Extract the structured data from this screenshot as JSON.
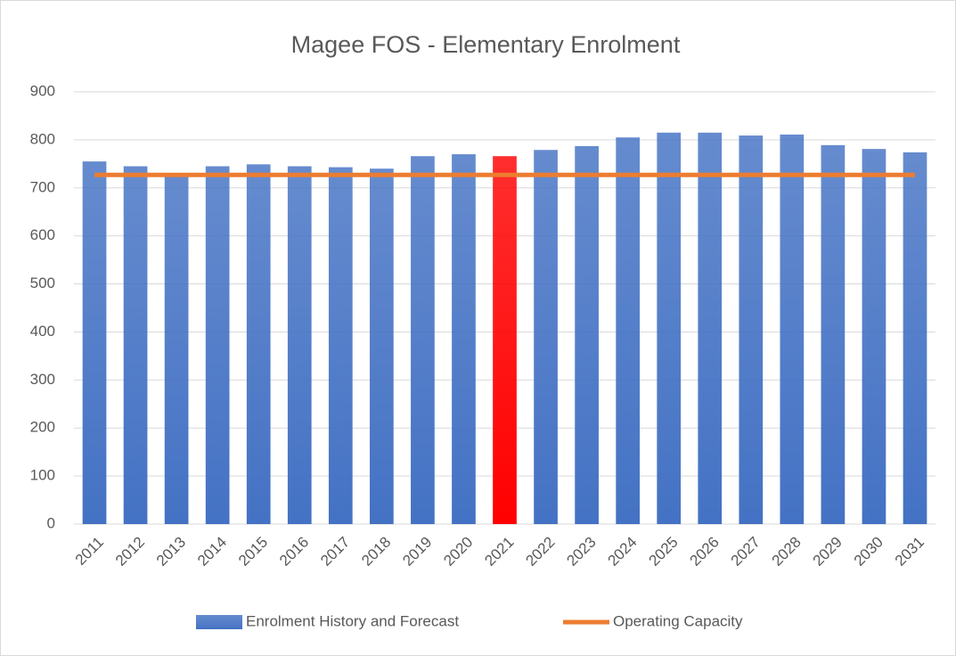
{
  "chart_data": {
    "type": "bar",
    "title": "Magee FOS - Elementary Enrolment",
    "categories": [
      "2011",
      "2012",
      "2013",
      "2014",
      "2015",
      "2016",
      "2017",
      "2018",
      "2019",
      "2020",
      "2021",
      "2022",
      "2023",
      "2024",
      "2025",
      "2026",
      "2027",
      "2028",
      "2029",
      "2030",
      "2031"
    ],
    "series": [
      {
        "name": "Enrolment History and Forecast",
        "type": "bar",
        "color": "#4472c4",
        "colors": [
          "#4472c4",
          "#4472c4",
          "#4472c4",
          "#4472c4",
          "#4472c4",
          "#4472c4",
          "#4472c4",
          "#4472c4",
          "#4472c4",
          "#4472c4",
          "#ff0000",
          "#4472c4",
          "#4472c4",
          "#4472c4",
          "#4472c4",
          "#4472c4",
          "#4472c4",
          "#4472c4",
          "#4472c4",
          "#4472c4",
          "#4472c4"
        ],
        "values": [
          755,
          745,
          728,
          745,
          749,
          745,
          743,
          740,
          766,
          770,
          766,
          779,
          787,
          805,
          815,
          815,
          809,
          811,
          789,
          781,
          774
        ]
      },
      {
        "name": "Operating Capacity",
        "type": "line",
        "color": "#ed7d31",
        "values": [
          727,
          727,
          727,
          727,
          727,
          727,
          727,
          727,
          727,
          727,
          727,
          727,
          727,
          727,
          727,
          727,
          727,
          727,
          727,
          727,
          727
        ]
      }
    ],
    "ylim": [
      0,
      900
    ],
    "yticks": [
      0,
      100,
      200,
      300,
      400,
      500,
      600,
      700,
      800,
      900
    ],
    "grid": true,
    "legend": "bottom"
  }
}
